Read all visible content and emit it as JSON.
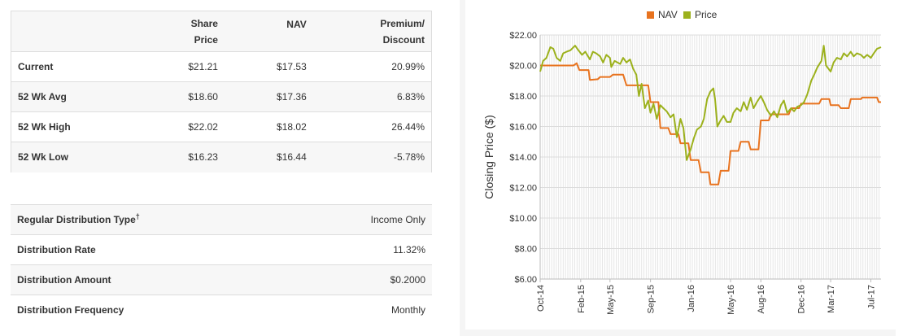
{
  "price_table": {
    "headers": [
      "",
      "Share\nPrice",
      "NAV",
      "Premium/\nDiscount"
    ],
    "header_lines": [
      [
        ""
      ],
      [
        "Share",
        "Price"
      ],
      [
        "NAV"
      ],
      [
        "Premium/",
        "Discount"
      ]
    ],
    "rows": [
      {
        "label": "Current",
        "share_price": "$21.21",
        "nav": "$17.53",
        "premium": "20.99%"
      },
      {
        "label": "52 Wk Avg",
        "share_price": "$18.60",
        "nav": "$17.36",
        "premium": "6.83%"
      },
      {
        "label": "52 Wk High",
        "share_price": "$22.02",
        "nav": "$18.02",
        "premium": "26.44%"
      },
      {
        "label": "52 Wk Low",
        "share_price": "$16.23",
        "nav": "$16.44",
        "premium": "-5.78%"
      }
    ]
  },
  "distribution_table": {
    "rows": [
      {
        "label": "Regular Distribution Type",
        "dagger": "†",
        "value": "Income Only"
      },
      {
        "label": "Distribution Rate",
        "dagger": "",
        "value": "11.32%"
      },
      {
        "label": "Distribution Amount",
        "dagger": "",
        "value": "$0.2000"
      },
      {
        "label": "Distribution Frequency",
        "dagger": "",
        "value": "Monthly"
      }
    ]
  },
  "chart_data": {
    "type": "line",
    "title": "",
    "xlabel": "",
    "ylabel": "Closing Price ($)",
    "ylim": [
      6,
      22
    ],
    "yticks": [
      "$6.00",
      "$8.00",
      "$10.00",
      "$12.00",
      "$14.00",
      "$16.00",
      "$18.00",
      "$20.00",
      "$22.00"
    ],
    "yticks_values": [
      6,
      8,
      10,
      12,
      14,
      16,
      18,
      20,
      22
    ],
    "xlim": [
      "2014-10-01",
      "2017-08-01"
    ],
    "xticks": [
      {
        "label": "Oct-14",
        "date": "2014-10-01"
      },
      {
        "label": "Feb-15",
        "date": "2015-02-01"
      },
      {
        "label": "May-15",
        "date": "2015-05-01"
      },
      {
        "label": "Sep-15",
        "date": "2015-09-01"
      },
      {
        "label": "Jan-16",
        "date": "2016-01-01"
      },
      {
        "label": "May-16",
        "date": "2016-05-01"
      },
      {
        "label": "Aug-16",
        "date": "2016-08-01"
      },
      {
        "label": "Dec-16",
        "date": "2016-12-01"
      },
      {
        "label": "Mar-17",
        "date": "2017-03-01"
      },
      {
        "label": "Jul-17",
        "date": "2017-07-01"
      }
    ],
    "grid": true,
    "legend_position": "top",
    "series": [
      {
        "name": "NAV",
        "color": "#e8731f",
        "points": [
          [
            "2014-10-01",
            20.0
          ],
          [
            "2014-11-01",
            20.0
          ],
          [
            "2014-12-01",
            20.0
          ],
          [
            "2015-01-10",
            20.0
          ],
          [
            "2015-01-20",
            20.15
          ],
          [
            "2015-01-28",
            19.7
          ],
          [
            "2015-02-25",
            19.7
          ],
          [
            "2015-03-01",
            19.05
          ],
          [
            "2015-03-25",
            19.1
          ],
          [
            "2015-04-01",
            19.25
          ],
          [
            "2015-05-01",
            19.25
          ],
          [
            "2015-05-10",
            19.4
          ],
          [
            "2015-06-10",
            19.4
          ],
          [
            "2015-06-20",
            18.7
          ],
          [
            "2015-08-25",
            18.7
          ],
          [
            "2015-09-01",
            17.6
          ],
          [
            "2015-09-25",
            17.6
          ],
          [
            "2015-10-01",
            15.9
          ],
          [
            "2015-10-25",
            15.9
          ],
          [
            "2015-11-01",
            15.5
          ],
          [
            "2015-11-25",
            15.5
          ],
          [
            "2015-12-01",
            14.9
          ],
          [
            "2015-12-25",
            14.9
          ],
          [
            "2016-01-01",
            13.8
          ],
          [
            "2016-01-25",
            13.8
          ],
          [
            "2016-02-01",
            13.0
          ],
          [
            "2016-02-25",
            13.0
          ],
          [
            "2016-03-01",
            12.2
          ],
          [
            "2016-03-25",
            12.2
          ],
          [
            "2016-04-01",
            13.1
          ],
          [
            "2016-04-25",
            13.1
          ],
          [
            "2016-05-01",
            14.4
          ],
          [
            "2016-05-25",
            14.4
          ],
          [
            "2016-06-01",
            15.0
          ],
          [
            "2016-06-25",
            15.0
          ],
          [
            "2016-07-01",
            14.5
          ],
          [
            "2016-07-25",
            14.5
          ],
          [
            "2016-08-01",
            16.4
          ],
          [
            "2016-08-25",
            16.4
          ],
          [
            "2016-09-01",
            16.8
          ],
          [
            "2016-09-25",
            16.8
          ],
          [
            "2016-10-01",
            16.8
          ],
          [
            "2016-10-25",
            16.8
          ],
          [
            "2016-11-01",
            17.2
          ],
          [
            "2016-11-25",
            17.2
          ],
          [
            "2016-12-01",
            17.5
          ],
          [
            "2017-01-25",
            17.5
          ],
          [
            "2017-02-01",
            17.8
          ],
          [
            "2017-02-25",
            17.8
          ],
          [
            "2017-03-01",
            17.4
          ],
          [
            "2017-03-25",
            17.4
          ],
          [
            "2017-04-01",
            17.2
          ],
          [
            "2017-04-25",
            17.2
          ],
          [
            "2017-05-01",
            17.8
          ],
          [
            "2017-06-01",
            17.8
          ],
          [
            "2017-06-05",
            17.9
          ],
          [
            "2017-07-20",
            17.9
          ],
          [
            "2017-07-25",
            17.6
          ],
          [
            "2017-08-01",
            17.6
          ]
        ]
      },
      {
        "name": "Price",
        "color": "#9cb11c",
        "points": [
          [
            "2014-10-01",
            19.6
          ],
          [
            "2014-10-10",
            20.3
          ],
          [
            "2014-10-20",
            20.5
          ],
          [
            "2014-11-01",
            21.2
          ],
          [
            "2014-11-10",
            21.1
          ],
          [
            "2014-11-20",
            20.5
          ],
          [
            "2014-12-01",
            20.3
          ],
          [
            "2014-12-10",
            20.8
          ],
          [
            "2014-12-20",
            20.9
          ],
          [
            "2015-01-01",
            21.0
          ],
          [
            "2015-01-15",
            21.3
          ],
          [
            "2015-01-25",
            21.0
          ],
          [
            "2015-02-05",
            20.7
          ],
          [
            "2015-02-15",
            20.9
          ],
          [
            "2015-03-01",
            20.4
          ],
          [
            "2015-03-10",
            20.9
          ],
          [
            "2015-03-20",
            20.8
          ],
          [
            "2015-04-01",
            20.6
          ],
          [
            "2015-04-10",
            20.2
          ],
          [
            "2015-04-20",
            20.7
          ],
          [
            "2015-05-01",
            20.5
          ],
          [
            "2015-05-05",
            19.9
          ],
          [
            "2015-05-15",
            20.3
          ],
          [
            "2015-06-01",
            20.1
          ],
          [
            "2015-06-10",
            20.5
          ],
          [
            "2015-06-20",
            20.2
          ],
          [
            "2015-07-01",
            20.4
          ],
          [
            "2015-07-10",
            19.8
          ],
          [
            "2015-07-20",
            19.4
          ],
          [
            "2015-07-28",
            18.0
          ],
          [
            "2015-08-05",
            18.8
          ],
          [
            "2015-08-15",
            17.2
          ],
          [
            "2015-08-25",
            17.7
          ],
          [
            "2015-09-01",
            16.9
          ],
          [
            "2015-09-10",
            17.5
          ],
          [
            "2015-09-20",
            16.5
          ],
          [
            "2015-10-01",
            17.4
          ],
          [
            "2015-10-10",
            17.2
          ],
          [
            "2015-10-20",
            17.0
          ],
          [
            "2015-11-01",
            16.6
          ],
          [
            "2015-11-10",
            16.8
          ],
          [
            "2015-11-20",
            15.3
          ],
          [
            "2015-12-01",
            16.5
          ],
          [
            "2015-12-10",
            15.9
          ],
          [
            "2015-12-20",
            13.8
          ],
          [
            "2016-01-01",
            14.5
          ],
          [
            "2016-01-10",
            15.2
          ],
          [
            "2016-01-20",
            15.8
          ],
          [
            "2016-02-01",
            16.0
          ],
          [
            "2016-02-10",
            16.5
          ],
          [
            "2016-02-20",
            17.8
          ],
          [
            "2016-03-01",
            18.3
          ],
          [
            "2016-03-10",
            18.5
          ],
          [
            "2016-03-15",
            17.8
          ],
          [
            "2016-03-22",
            16.0
          ],
          [
            "2016-04-01",
            16.4
          ],
          [
            "2016-04-10",
            16.7
          ],
          [
            "2016-04-20",
            16.3
          ],
          [
            "2016-05-01",
            16.3
          ],
          [
            "2016-05-10",
            16.9
          ],
          [
            "2016-05-20",
            17.2
          ],
          [
            "2016-06-01",
            17.0
          ],
          [
            "2016-06-10",
            17.6
          ],
          [
            "2016-06-20",
            17.1
          ],
          [
            "2016-07-01",
            17.9
          ],
          [
            "2016-07-10",
            17.2
          ],
          [
            "2016-07-20",
            17.6
          ],
          [
            "2016-08-01",
            18.0
          ],
          [
            "2016-08-10",
            17.6
          ],
          [
            "2016-08-20",
            17.1
          ],
          [
            "2016-09-01",
            16.7
          ],
          [
            "2016-09-10",
            17.0
          ],
          [
            "2016-09-20",
            16.6
          ],
          [
            "2016-10-01",
            17.4
          ],
          [
            "2016-10-10",
            17.7
          ],
          [
            "2016-10-20",
            16.9
          ],
          [
            "2016-11-01",
            17.2
          ],
          [
            "2016-11-10",
            17.0
          ],
          [
            "2016-11-20",
            17.3
          ],
          [
            "2016-12-01",
            17.4
          ],
          [
            "2016-12-10",
            17.6
          ],
          [
            "2016-12-20",
            18.1
          ],
          [
            "2017-01-01",
            19.0
          ],
          [
            "2017-01-10",
            19.4
          ],
          [
            "2017-01-20",
            19.9
          ],
          [
            "2017-02-01",
            20.3
          ],
          [
            "2017-02-08",
            21.3
          ],
          [
            "2017-02-15",
            20.0
          ],
          [
            "2017-03-01",
            19.6
          ],
          [
            "2017-03-10",
            20.2
          ],
          [
            "2017-03-20",
            20.5
          ],
          [
            "2017-04-01",
            20.4
          ],
          [
            "2017-04-10",
            20.8
          ],
          [
            "2017-04-20",
            20.6
          ],
          [
            "2017-05-01",
            20.9
          ],
          [
            "2017-05-10",
            20.6
          ],
          [
            "2017-05-20",
            20.8
          ],
          [
            "2017-06-01",
            20.7
          ],
          [
            "2017-06-10",
            20.5
          ],
          [
            "2017-06-20",
            20.7
          ],
          [
            "2017-07-01",
            20.5
          ],
          [
            "2017-07-10",
            20.8
          ],
          [
            "2017-07-20",
            21.1
          ],
          [
            "2017-08-01",
            21.2
          ]
        ]
      }
    ]
  }
}
